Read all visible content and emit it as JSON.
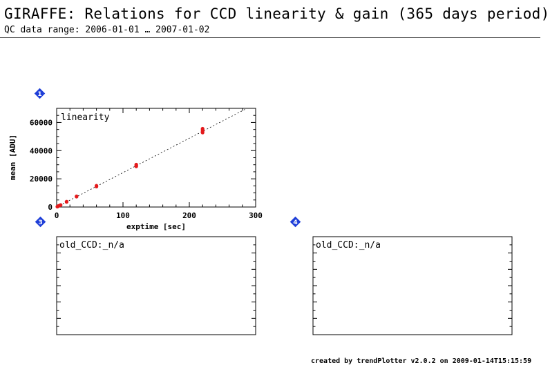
{
  "header": {
    "title": "GIRAFFE: Relations for CCD linearity & gain (365 days period)",
    "subtitle": "QC data range: 2006-01-01 … 2007-01-02"
  },
  "footer": {
    "text": "created by trendPlotter v2.0.2 on 2009-01-14T15:15:59"
  },
  "badges": [
    "1",
    "3",
    "4"
  ],
  "colors": {
    "points": "#e41a1c",
    "badge": "#1f3fd8",
    "fit": "#000000"
  },
  "chart_data": [
    {
      "type": "scatter",
      "panel": "1",
      "label": "linearity",
      "xlabel": "exptime [sec]",
      "ylabel": "mean [ADU]",
      "xlim": [
        0,
        300
      ],
      "ylim": [
        0,
        70000
      ],
      "xticks": [
        0,
        100,
        200,
        300
      ],
      "yticks": [
        0,
        20000,
        40000,
        60000
      ],
      "series": [
        {
          "points": [
            [
              1,
              250
            ],
            [
              2,
              500
            ],
            [
              3,
              800
            ],
            [
              5,
              1200
            ],
            [
              6,
              1400
            ],
            [
              15,
              3600
            ],
            [
              15,
              3800
            ],
            [
              30,
              7300
            ],
            [
              30,
              7600
            ],
            [
              60,
              14500
            ],
            [
              60,
              15100
            ],
            [
              120,
              28800
            ],
            [
              120,
              29500
            ],
            [
              120,
              30100
            ],
            [
              220,
              52800
            ],
            [
              220,
              53800
            ],
            [
              220,
              54800
            ],
            [
              220,
              55600
            ]
          ]
        }
      ],
      "fit_line": {
        "slope": 244,
        "intercept": 0
      }
    },
    {
      "type": "scatter",
      "panel": "3",
      "label": "old_CCD:_n/a",
      "series": []
    },
    {
      "type": "scatter",
      "panel": "4",
      "label": "old_CCD:_n/a",
      "series": []
    }
  ]
}
